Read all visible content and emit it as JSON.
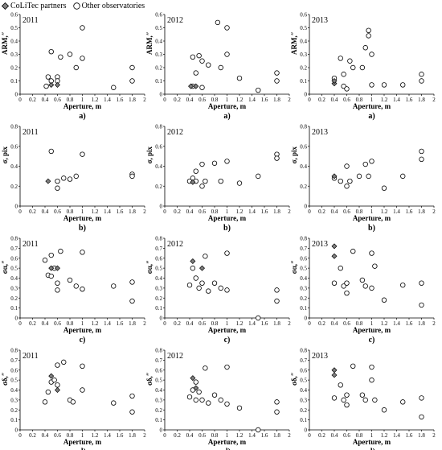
{
  "legend": {
    "partners_label": "CoLiTec partners",
    "others_label": "Other observatories"
  },
  "colors": {
    "marker_stroke": "#000000",
    "partner_fill": "#7f7f7f",
    "other_fill": "#ffffff"
  },
  "chart_data": [
    {
      "type": "scatter",
      "year": "2011",
      "ylabel": "ARM,″",
      "xlabel": "Aperture, m",
      "panel_label": "a)",
      "xlim": [
        0,
        2
      ],
      "ylim": [
        0,
        0.6
      ],
      "xticks": [
        "0",
        "0.2",
        "0.4",
        "0.6",
        "0.8",
        "1",
        "1.2",
        "1.4",
        "1.6",
        "1.8",
        "2"
      ],
      "yticks": [
        "0",
        "0.1",
        "0.2",
        "0.3",
        "0.4",
        "0.5",
        "0.6"
      ],
      "partners": [
        [
          0.5,
          0.07
        ],
        [
          0.6,
          0.07
        ]
      ],
      "others": [
        [
          0.42,
          0.06
        ],
        [
          0.45,
          0.13
        ],
        [
          0.5,
          0.32
        ],
        [
          0.5,
          0.1
        ],
        [
          0.6,
          0.13
        ],
        [
          0.6,
          0.1
        ],
        [
          0.65,
          0.28
        ],
        [
          0.8,
          0.3
        ],
        [
          0.9,
          0.2
        ],
        [
          1.0,
          0.5
        ],
        [
          1.0,
          0.27
        ],
        [
          1.5,
          0.05
        ],
        [
          1.8,
          0.2
        ],
        [
          1.8,
          0.1
        ]
      ]
    },
    {
      "type": "scatter",
      "year": "2012",
      "ylabel": "ARM,″",
      "xlabel": "Aperture, m",
      "panel_label": "a)",
      "xlim": [
        0,
        2
      ],
      "ylim": [
        0,
        0.6
      ],
      "xticks": [
        "0",
        "0.2",
        "0.4",
        "0.6",
        "0.8",
        "1",
        "1.2",
        "1.4",
        "1.6",
        "1.8",
        "2"
      ],
      "yticks": [
        "0",
        "0.1",
        "0.2",
        "0.3",
        "0.4",
        "0.5",
        "0.6"
      ],
      "partners": [
        [
          0.42,
          0.06
        ],
        [
          0.5,
          0.06
        ]
      ],
      "others": [
        [
          0.45,
          0.28
        ],
        [
          0.45,
          0.06
        ],
        [
          0.5,
          0.16
        ],
        [
          0.55,
          0.29
        ],
        [
          0.6,
          0.25
        ],
        [
          0.6,
          0.05
        ],
        [
          0.7,
          0.22
        ],
        [
          0.85,
          0.54
        ],
        [
          0.9,
          0.2
        ],
        [
          1.0,
          0.5
        ],
        [
          1.0,
          0.3
        ],
        [
          1.2,
          0.12
        ],
        [
          1.5,
          0.03
        ],
        [
          1.8,
          0.16
        ],
        [
          1.8,
          0.1
        ]
      ]
    },
    {
      "type": "scatter",
      "year": "2013",
      "ylabel": "ARM,″",
      "xlabel": "Aperture, m",
      "panel_label": "a)",
      "xlim": [
        0,
        2
      ],
      "ylim": [
        0,
        0.6
      ],
      "xticks": [
        "0",
        "0.2",
        "0.4",
        "0.6",
        "0.8",
        "1",
        "1.2",
        "1.4",
        "1.6",
        "1.8",
        "2"
      ],
      "yticks": [
        "0",
        "0.1",
        "0.2",
        "0.3",
        "0.4",
        "0.5",
        "0.6"
      ],
      "partners": [
        [
          0.4,
          0.08
        ],
        [
          0.4,
          0.1
        ]
      ],
      "others": [
        [
          0.4,
          0.12
        ],
        [
          0.5,
          0.27
        ],
        [
          0.55,
          0.06
        ],
        [
          0.55,
          0.15
        ],
        [
          0.6,
          0.04
        ],
        [
          0.65,
          0.25
        ],
        [
          0.7,
          0.2
        ],
        [
          0.85,
          0.2
        ],
        [
          0.9,
          0.35
        ],
        [
          0.95,
          0.48
        ],
        [
          0.95,
          0.44
        ],
        [
          1.0,
          0.3
        ],
        [
          1.0,
          0.07
        ],
        [
          1.2,
          0.07
        ],
        [
          1.5,
          0.07
        ],
        [
          1.8,
          0.15
        ],
        [
          1.8,
          0.1
        ]
      ]
    },
    {
      "type": "scatter",
      "year": "2011",
      "ylabel": "σ, pix",
      "xlabel": "Aperture, m",
      "panel_label": "b)",
      "xlim": [
        0,
        2
      ],
      "ylim": [
        0,
        0.8
      ],
      "xticks": [
        "0",
        "0.2",
        "0.4",
        "0.6",
        "0.8",
        "1",
        "1.2",
        "1.4",
        "1.6",
        "1.8",
        "2"
      ],
      "yticks": [
        "0",
        "0.2",
        "0.4",
        "0.6",
        "0.8"
      ],
      "partners": [
        [
          0.45,
          0.25
        ]
      ],
      "others": [
        [
          0.5,
          0.55
        ],
        [
          0.6,
          0.25
        ],
        [
          0.6,
          0.18
        ],
        [
          0.7,
          0.28
        ],
        [
          0.8,
          0.27
        ],
        [
          0.9,
          0.3
        ],
        [
          1.0,
          0.52
        ],
        [
          1.8,
          0.32
        ],
        [
          1.8,
          0.3
        ]
      ]
    },
    {
      "type": "scatter",
      "year": "2012",
      "ylabel": "σ, pix",
      "xlabel": "Aperture, m",
      "panel_label": "b)",
      "xlim": [
        0,
        2
      ],
      "ylim": [
        0,
        0.8
      ],
      "xticks": [
        "0",
        "0.2",
        "0.4",
        "0.6",
        "0.8",
        "1",
        "1.2",
        "1.4",
        "1.6",
        "1.8",
        "2"
      ],
      "yticks": [
        "0",
        "0.2",
        "0.4",
        "0.6",
        "0.8"
      ],
      "partners": [
        [
          0.45,
          0.24
        ]
      ],
      "others": [
        [
          0.4,
          0.25
        ],
        [
          0.45,
          0.28
        ],
        [
          0.5,
          0.35
        ],
        [
          0.5,
          0.25
        ],
        [
          0.6,
          0.42
        ],
        [
          0.6,
          0.2
        ],
        [
          0.65,
          0.25
        ],
        [
          0.8,
          0.43
        ],
        [
          0.9,
          0.25
        ],
        [
          1.0,
          0.45
        ],
        [
          1.2,
          0.23
        ],
        [
          1.5,
          0.3
        ],
        [
          1.8,
          0.52
        ],
        [
          1.8,
          0.48
        ]
      ]
    },
    {
      "type": "scatter",
      "year": "2013",
      "ylabel": "σ, pix",
      "xlabel": "Aperture, m",
      "panel_label": "b)",
      "xlim": [
        0,
        2
      ],
      "ylim": [
        0,
        0.8
      ],
      "xticks": [
        "0",
        "0.2",
        "0.4",
        "0.6",
        "0.8",
        "1",
        "1.2",
        "1.4",
        "1.6",
        "1.8",
        "2"
      ],
      "yticks": [
        "0",
        "0.2",
        "0.4",
        "0.6",
        "0.8"
      ],
      "partners": [
        [
          0.4,
          0.3
        ]
      ],
      "others": [
        [
          0.4,
          0.28
        ],
        [
          0.5,
          0.25
        ],
        [
          0.6,
          0.2
        ],
        [
          0.6,
          0.4
        ],
        [
          0.65,
          0.25
        ],
        [
          0.8,
          0.3
        ],
        [
          0.9,
          0.42
        ],
        [
          0.95,
          0.3
        ],
        [
          1.0,
          0.45
        ],
        [
          1.2,
          0.18
        ],
        [
          1.5,
          0.3
        ],
        [
          1.8,
          0.55
        ],
        [
          1.8,
          0.47
        ]
      ]
    },
    {
      "type": "scatter",
      "year": "2011",
      "ylabel": "σα,″",
      "xlabel": "Aperture, m",
      "panel_label": "c)",
      "xlim": [
        0,
        2
      ],
      "ylim": [
        0,
        0.8
      ],
      "xticks": [
        "0",
        "0.2",
        "0.4",
        "0.6",
        "0.8",
        "1",
        "1.2",
        "1.4",
        "1.6",
        "1.8",
        "2"
      ],
      "yticks": [
        "0",
        "0.1",
        "0.2",
        "0.3",
        "0.4",
        "0.5",
        "0.6",
        "0.7",
        "0.8"
      ],
      "partners": [
        [
          0.5,
          0.5
        ],
        [
          0.6,
          0.5
        ]
      ],
      "others": [
        [
          0.4,
          0.58
        ],
        [
          0.45,
          0.43
        ],
        [
          0.5,
          0.63
        ],
        [
          0.5,
          0.42
        ],
        [
          0.55,
          0.5
        ],
        [
          0.6,
          0.35
        ],
        [
          0.6,
          0.28
        ],
        [
          0.65,
          0.67
        ],
        [
          0.8,
          0.38
        ],
        [
          0.9,
          0.32
        ],
        [
          1.0,
          0.66
        ],
        [
          1.0,
          0.29
        ],
        [
          1.5,
          0.32
        ],
        [
          1.8,
          0.36
        ],
        [
          1.8,
          0.17
        ]
      ]
    },
    {
      "type": "scatter",
      "year": "2012",
      "ylabel": "σα,″",
      "xlabel": "Aperture, m",
      "panel_label": "c)",
      "xlim": [
        0,
        2
      ],
      "ylim": [
        0,
        0.8
      ],
      "xticks": [
        "0",
        "0.2",
        "0.4",
        "0.6",
        "0.8",
        "1",
        "1.2",
        "1.4",
        "1.6",
        "1.8",
        "2"
      ],
      "yticks": [
        "0",
        "0.1",
        "0.2",
        "0.3",
        "0.4",
        "0.5",
        "0.6",
        "0.7",
        "0.8"
      ],
      "partners": [
        [
          0.45,
          0.57
        ],
        [
          0.6,
          0.5
        ]
      ],
      "others": [
        [
          0.4,
          0.33
        ],
        [
          0.45,
          0.5
        ],
        [
          0.5,
          0.4
        ],
        [
          0.55,
          0.3
        ],
        [
          0.6,
          0.35
        ],
        [
          0.65,
          0.62
        ],
        [
          0.7,
          0.27
        ],
        [
          0.8,
          0.35
        ],
        [
          0.9,
          0.3
        ],
        [
          1.0,
          0.65
        ],
        [
          1.0,
          0.28
        ],
        [
          1.5,
          0.0
        ],
        [
          1.8,
          0.28
        ],
        [
          1.8,
          0.17
        ]
      ]
    },
    {
      "type": "scatter",
      "year": "2013",
      "ylabel": "σα,″",
      "xlabel": "Aperture, m",
      "panel_label": "c)",
      "xlim": [
        0,
        2
      ],
      "ylim": [
        0,
        0.8
      ],
      "xticks": [
        "0",
        "0.2",
        "0.4",
        "0.6",
        "0.8",
        "1",
        "1.2",
        "1.4",
        "1.6",
        "1.8",
        "2"
      ],
      "yticks": [
        "0",
        "0.1",
        "0.2",
        "0.3",
        "0.4",
        "0.5",
        "0.6",
        "0.7",
        "0.8"
      ],
      "partners": [
        [
          0.4,
          0.72
        ],
        [
          0.4,
          0.62
        ]
      ],
      "others": [
        [
          0.4,
          0.35
        ],
        [
          0.5,
          0.5
        ],
        [
          0.55,
          0.32
        ],
        [
          0.6,
          0.35
        ],
        [
          0.6,
          0.25
        ],
        [
          0.7,
          0.67
        ],
        [
          0.85,
          0.38
        ],
        [
          0.9,
          0.32
        ],
        [
          1.0,
          0.65
        ],
        [
          1.0,
          0.3
        ],
        [
          1.05,
          0.52
        ],
        [
          1.2,
          0.18
        ],
        [
          1.5,
          0.33
        ],
        [
          1.8,
          0.35
        ],
        [
          1.8,
          0.13
        ]
      ]
    },
    {
      "type": "scatter",
      "year": "2011",
      "ylabel": "σδ,″",
      "xlabel": "Aperture, m",
      "panel_label": "d)",
      "xlim": [
        0,
        2
      ],
      "ylim": [
        0,
        0.8
      ],
      "xticks": [
        "0",
        "0.2",
        "0.4",
        "0.6",
        "0.8",
        "1",
        "1.2",
        "1.4",
        "1.6",
        "1.8",
        "2"
      ],
      "yticks": [
        "0",
        "0.1",
        "0.2",
        "0.3",
        "0.4",
        "0.5",
        "0.6",
        "0.7",
        "0.8"
      ],
      "partners": [
        [
          0.5,
          0.54
        ],
        [
          0.6,
          0.4
        ]
      ],
      "others": [
        [
          0.4,
          0.28
        ],
        [
          0.45,
          0.38
        ],
        [
          0.5,
          0.48
        ],
        [
          0.55,
          0.5
        ],
        [
          0.6,
          0.65
        ],
        [
          0.6,
          0.45
        ],
        [
          0.7,
          0.68
        ],
        [
          0.8,
          0.3
        ],
        [
          0.85,
          0.28
        ],
        [
          1.0,
          0.64
        ],
        [
          1.0,
          0.4
        ],
        [
          1.5,
          0.27
        ],
        [
          1.8,
          0.34
        ],
        [
          1.8,
          0.18
        ]
      ]
    },
    {
      "type": "scatter",
      "year": "2012",
      "ylabel": "σδ,″",
      "xlabel": "Aperture, m",
      "panel_label": "d)",
      "xlim": [
        0,
        2
      ],
      "ylim": [
        0,
        0.8
      ],
      "xticks": [
        "0",
        "0.2",
        "0.4",
        "0.6",
        "0.8",
        "1",
        "1.2",
        "1.4",
        "1.6",
        "1.8",
        "2"
      ],
      "yticks": [
        "0",
        "0.1",
        "0.2",
        "0.3",
        "0.4",
        "0.5",
        "0.6",
        "0.7",
        "0.8"
      ],
      "partners": [
        [
          0.45,
          0.52
        ],
        [
          0.5,
          0.42
        ]
      ],
      "others": [
        [
          0.4,
          0.33
        ],
        [
          0.45,
          0.4
        ],
        [
          0.5,
          0.48
        ],
        [
          0.5,
          0.3
        ],
        [
          0.55,
          0.38
        ],
        [
          0.6,
          0.3
        ],
        [
          0.65,
          0.62
        ],
        [
          0.7,
          0.27
        ],
        [
          0.8,
          0.35
        ],
        [
          0.9,
          0.3
        ],
        [
          1.0,
          0.63
        ],
        [
          1.0,
          0.26
        ],
        [
          1.2,
          0.22
        ],
        [
          1.5,
          0.0
        ],
        [
          1.8,
          0.28
        ],
        [
          1.8,
          0.18
        ]
      ]
    },
    {
      "type": "scatter",
      "year": "2013",
      "ylabel": "σδ,″",
      "xlabel": "Aperture, m",
      "panel_label": "d)",
      "xlim": [
        0,
        2
      ],
      "ylim": [
        0,
        0.8
      ],
      "xticks": [
        "0",
        "0.2",
        "0.4",
        "0.6",
        "0.8",
        "1",
        "1.2",
        "1.4",
        "1.6",
        "1.8",
        "2"
      ],
      "yticks": [
        "0",
        "0.1",
        "0.2",
        "0.3",
        "0.4",
        "0.5",
        "0.6",
        "0.7",
        "0.8"
      ],
      "partners": [
        [
          0.4,
          0.6
        ],
        [
          0.4,
          0.55
        ]
      ],
      "others": [
        [
          0.4,
          0.32
        ],
        [
          0.5,
          0.45
        ],
        [
          0.55,
          0.3
        ],
        [
          0.6,
          0.35
        ],
        [
          0.6,
          0.25
        ],
        [
          0.7,
          0.64
        ],
        [
          0.85,
          0.35
        ],
        [
          0.9,
          0.3
        ],
        [
          1.0,
          0.63
        ],
        [
          1.0,
          0.5
        ],
        [
          1.05,
          0.3
        ],
        [
          1.2,
          0.2
        ],
        [
          1.5,
          0.28
        ],
        [
          1.8,
          0.32
        ],
        [
          1.8,
          0.13
        ]
      ]
    }
  ]
}
